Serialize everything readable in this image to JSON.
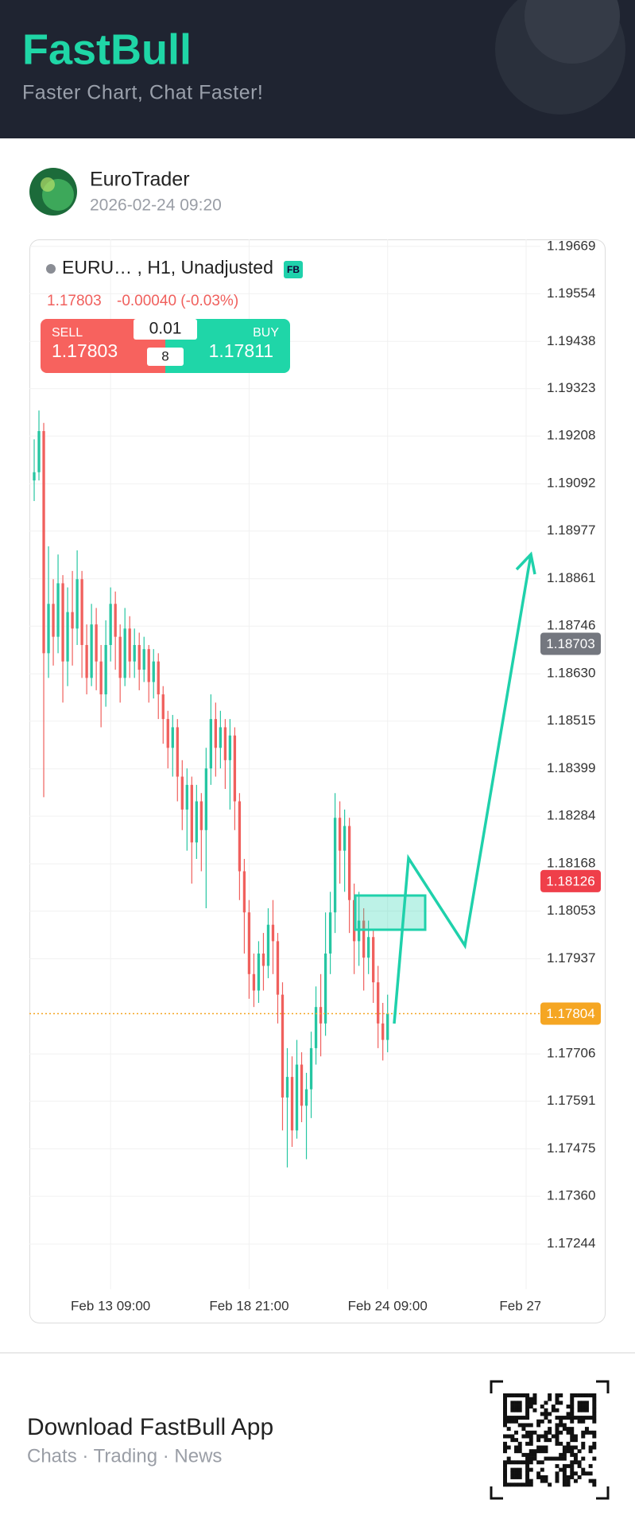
{
  "header": {
    "title": "FastBull",
    "subtitle": "Faster Chart, Chat Faster!"
  },
  "post": {
    "author": "EuroTrader",
    "time": "2026-02-24 09:20"
  },
  "trade_panel": {
    "sell_label": "SELL",
    "sell_price": "1.17803",
    "lot": "0.01",
    "step": "8",
    "buy_label": "BUY",
    "buy_price": "1.17811"
  },
  "chart_data": {
    "type": "candlestick",
    "title": "EURU… , H1, Unadjusted",
    "badge": "FB",
    "last_price": "1.17803",
    "change": "-0.00040 (-0.03%)",
    "up_color": "#26c6a2",
    "down_color": "#f0605d",
    "grid": true,
    "series": [
      {
        "open": [
          1.191,
          1.1912,
          1.1922,
          1.1868,
          1.188,
          1.1872,
          1.1885,
          1.1866,
          1.1878,
          1.1874,
          1.1886,
          1.187,
          1.1862,
          1.1875,
          1.1866,
          1.1858,
          1.187,
          1.188,
          1.1872,
          1.1862,
          1.1874,
          1.1866,
          1.187,
          1.1864,
          1.1869,
          1.1861,
          1.1866,
          1.1858,
          1.1852,
          1.1845,
          1.185,
          1.1838,
          1.183,
          1.1836,
          1.1822,
          1.1832,
          1.1825,
          1.184,
          1.1852,
          1.1845,
          1.185,
          1.1842,
          1.1848,
          1.1832,
          1.1815,
          1.1805,
          1.179,
          1.1786,
          1.1795,
          1.1792,
          1.1802,
          1.1798,
          1.1785,
          1.176,
          1.1765,
          1.1752,
          1.1768,
          1.1758,
          1.1762,
          1.1772,
          1.1782,
          1.1778,
          1.1795,
          1.1805,
          1.1828,
          1.182,
          1.1826,
          1.1808,
          1.1798,
          1.1803,
          1.1794,
          1.1799,
          1.1788,
          1.1778,
          1.1774
        ],
        "high": [
          1.192,
          1.1927,
          1.1924,
          1.1894,
          1.1886,
          1.1892,
          1.1887,
          1.1884,
          1.1888,
          1.1893,
          1.1888,
          1.1875,
          1.188,
          1.1879,
          1.187,
          1.1876,
          1.1884,
          1.1883,
          1.1875,
          1.1879,
          1.1877,
          1.1874,
          1.1873,
          1.1872,
          1.187,
          1.1869,
          1.1868,
          1.186,
          1.1854,
          1.1853,
          1.1852,
          1.1842,
          1.184,
          1.1838,
          1.1836,
          1.1834,
          1.1845,
          1.1858,
          1.1856,
          1.1854,
          1.1852,
          1.1852,
          1.185,
          1.1834,
          1.1818,
          1.1808,
          1.1795,
          1.1798,
          1.18,
          1.1806,
          1.1808,
          1.18,
          1.1788,
          1.1772,
          1.177,
          1.1774,
          1.1771,
          1.1766,
          1.1776,
          1.1787,
          1.179,
          1.1805,
          1.181,
          1.1834,
          1.1832,
          1.183,
          1.1828,
          1.1812,
          1.181,
          1.1806,
          1.1803,
          1.1801,
          1.1792,
          1.1783,
          1.1785
        ],
        "low": [
          1.1905,
          1.191,
          1.1833,
          1.1862,
          1.1865,
          1.1868,
          1.1856,
          1.186,
          1.1865,
          1.187,
          1.1862,
          1.1858,
          1.186,
          1.1859,
          1.185,
          1.1855,
          1.1866,
          1.1864,
          1.1856,
          1.186,
          1.1862,
          1.1862,
          1.1859,
          1.1861,
          1.1856,
          1.1857,
          1.1852,
          1.1846,
          1.184,
          1.1838,
          1.1832,
          1.1825,
          1.182,
          1.1812,
          1.1818,
          1.1815,
          1.1806,
          1.1836,
          1.1838,
          1.184,
          1.1835,
          1.183,
          1.1825,
          1.1808,
          1.1795,
          1.1784,
          1.1782,
          1.1783,
          1.1786,
          1.1789,
          1.179,
          1.1778,
          1.1752,
          1.1743,
          1.1748,
          1.175,
          1.1754,
          1.1745,
          1.1755,
          1.1768,
          1.177,
          1.1775,
          1.179,
          1.18,
          1.1812,
          1.181,
          1.18,
          1.179,
          1.1792,
          1.1786,
          1.179,
          1.1783,
          1.1772,
          1.1769,
          1.1771
        ],
        "close": [
          1.1912,
          1.1922,
          1.1868,
          1.188,
          1.1872,
          1.1885,
          1.1866,
          1.1878,
          1.1874,
          1.1886,
          1.187,
          1.1862,
          1.1875,
          1.1866,
          1.1858,
          1.187,
          1.188,
          1.1872,
          1.1862,
          1.1874,
          1.1866,
          1.187,
          1.1864,
          1.1869,
          1.1861,
          1.1866,
          1.1858,
          1.1852,
          1.1845,
          1.185,
          1.1838,
          1.183,
          1.1836,
          1.1822,
          1.1832,
          1.1825,
          1.184,
          1.1852,
          1.1845,
          1.185,
          1.1842,
          1.1848,
          1.1832,
          1.1815,
          1.1805,
          1.179,
          1.1786,
          1.1795,
          1.1792,
          1.1802,
          1.1798,
          1.1785,
          1.176,
          1.1765,
          1.1752,
          1.1768,
          1.1758,
          1.1762,
          1.1772,
          1.1782,
          1.1778,
          1.1795,
          1.1805,
          1.1828,
          1.182,
          1.1826,
          1.1808,
          1.1798,
          1.1803,
          1.1794,
          1.1799,
          1.1788,
          1.1778,
          1.1774,
          1.17804
        ]
      }
    ],
    "ylim": [
      1.17134,
      1.19686
    ],
    "yticks": [
      1.19669,
      1.19554,
      1.19438,
      1.19323,
      1.19208,
      1.19092,
      1.18977,
      1.18861,
      1.18746,
      {
        "value": 1.1863,
        "label": "1.18630"
      },
      1.18515,
      1.18399,
      1.18284,
      1.18168,
      1.18053,
      1.17937,
      1.17706,
      1.17591,
      1.17475,
      {
        "value": 1.1736,
        "label": "1.17360"
      },
      1.17244
    ],
    "xlim": [
      -1,
      106
    ],
    "xticks": [
      {
        "value": 16,
        "label": "Feb 13 09:00"
      },
      {
        "value": 45,
        "label": "Feb 18 21:00"
      },
      {
        "value": 74,
        "label": "Feb 24 09:00"
      },
      {
        "value": 103,
        "label": "Feb 27 2"
      }
    ],
    "price_tags": [
      {
        "value": 1.18703,
        "color": "#74777f"
      },
      {
        "value": 1.18126,
        "color": "#ef3f4a"
      },
      {
        "value": 1.17804,
        "color": "#f5a623",
        "line": true
      }
    ]
  },
  "footer": {
    "title": "Download FastBull App",
    "subtitle": "Chats · Trading · News"
  }
}
